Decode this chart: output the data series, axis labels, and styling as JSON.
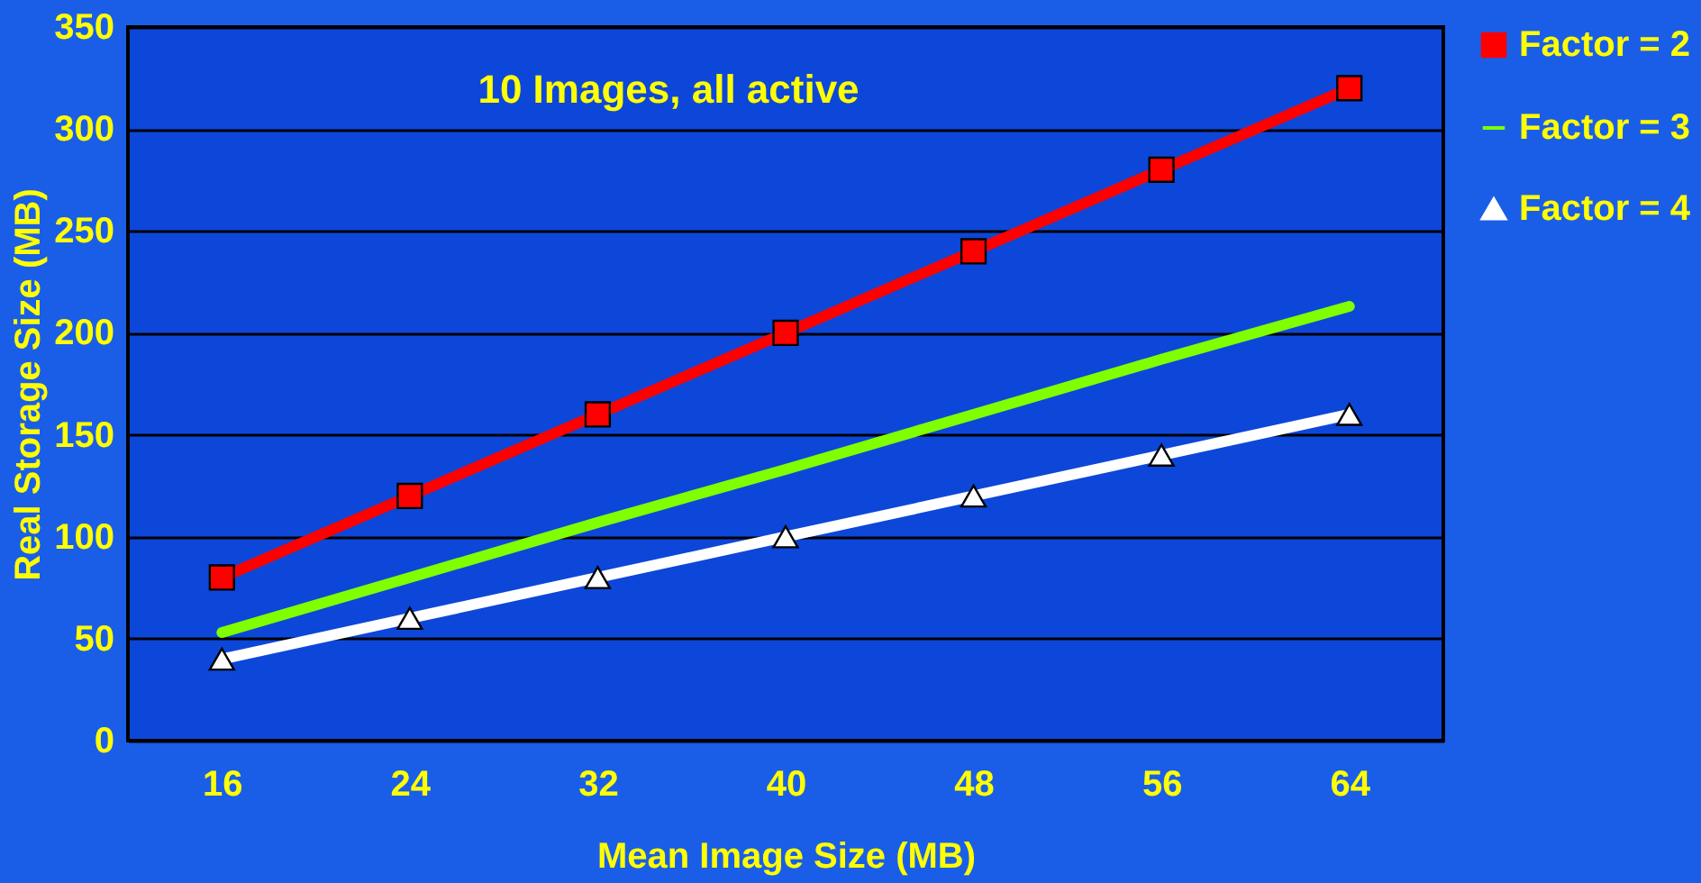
{
  "chart_data": {
    "type": "line",
    "title": "10 Images, all active",
    "xlabel": "Mean Image Size (MB)",
    "ylabel": "Real Storage Size (MB)",
    "categories": [
      "16",
      "24",
      "32",
      "40",
      "48",
      "56",
      "64"
    ],
    "series": [
      {
        "name": "Factor = 2",
        "color": "#ff0000",
        "marker": "square",
        "values": [
          80,
          120,
          160,
          200,
          240,
          280,
          320
        ]
      },
      {
        "name": "Factor = 3",
        "color": "#80ff00",
        "marker": "none",
        "values": [
          53,
          80,
          107,
          133,
          160,
          187,
          213
        ]
      },
      {
        "name": "Factor = 4",
        "color": "#ffffff",
        "marker": "triangle",
        "values": [
          40,
          60,
          80,
          100,
          120,
          140,
          160
        ]
      }
    ],
    "ylim": [
      0,
      350
    ],
    "yticks": [
      0,
      50,
      100,
      150,
      200,
      250,
      300,
      350
    ],
    "grid": "y",
    "legend": "right"
  }
}
